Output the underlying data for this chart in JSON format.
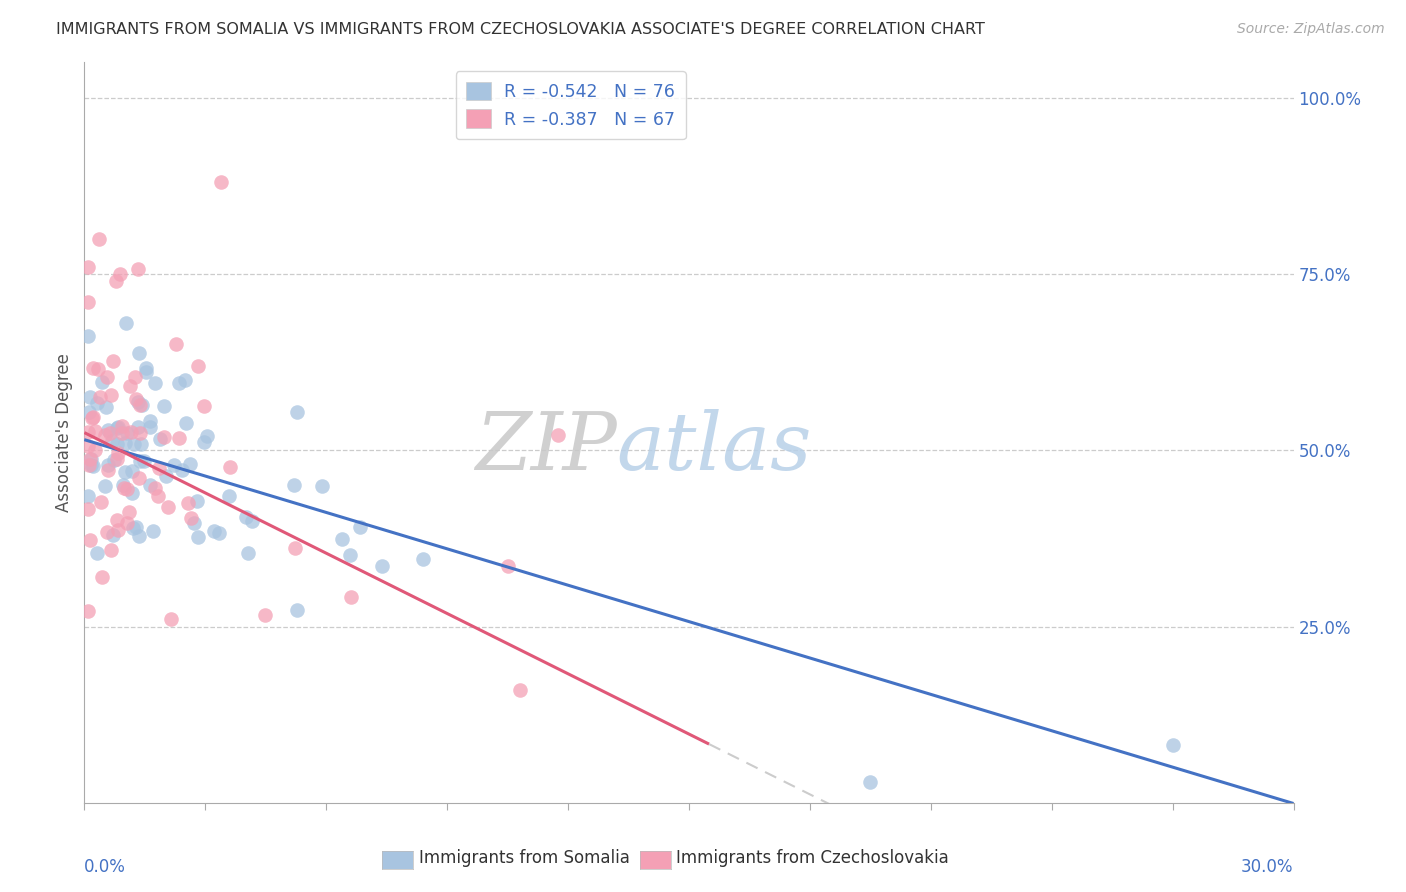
{
  "title": "IMMIGRANTS FROM SOMALIA VS IMMIGRANTS FROM CZECHOSLOVAKIA ASSOCIATE'S DEGREE CORRELATION CHART",
  "source": "Source: ZipAtlas.com",
  "ylabel": "Associate's Degree",
  "right_yticks": [
    "100.0%",
    "75.0%",
    "50.0%",
    "25.0%"
  ],
  "right_ytick_vals": [
    1.0,
    0.75,
    0.5,
    0.25
  ],
  "somalia_color": "#a8c4e0",
  "czechoslovakia_color": "#f4a0b5",
  "somalia_line_color": "#4472c4",
  "czechoslovakia_line_color": "#e05878",
  "R_somalia": -0.542,
  "N_somalia": 76,
  "R_czechoslovakia": -0.387,
  "N_czechoslovakia": 67,
  "xlim": [
    0.0,
    0.3
  ],
  "ylim": [
    0.0,
    1.05
  ],
  "watermark_ZIP": "ZIP",
  "watermark_atlas": "atlas",
  "somalia_line_intercept": 0.515,
  "somalia_line_slope": -1.72,
  "czechoslovakia_line_intercept": 0.525,
  "czechoslovakia_line_slope": -2.85,
  "cz_line_end_x": 0.155
}
